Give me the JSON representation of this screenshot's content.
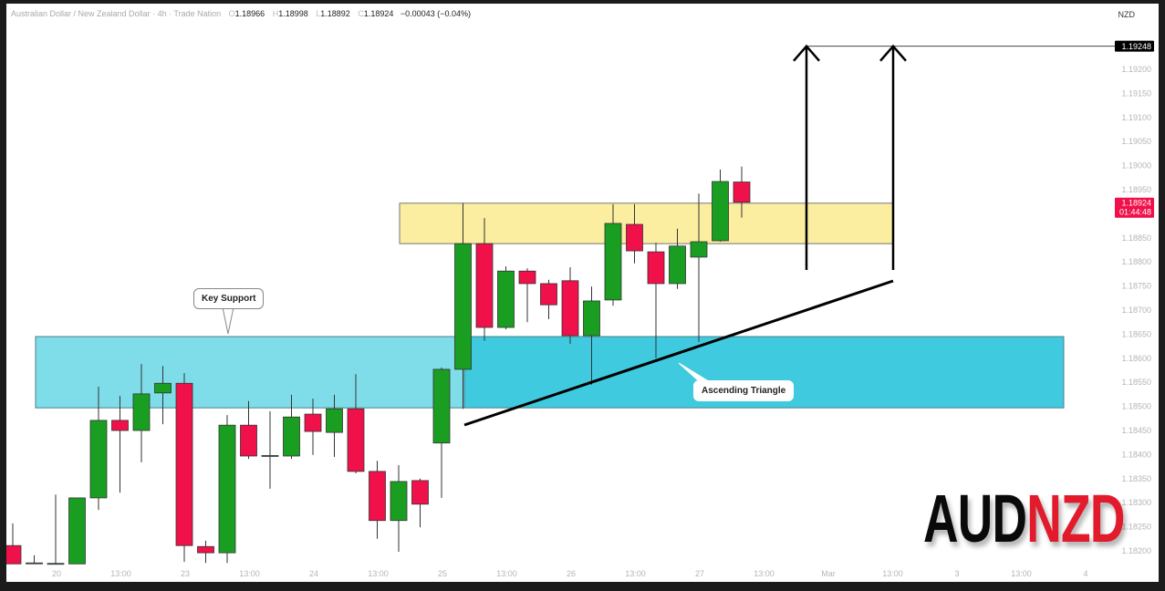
{
  "header": {
    "symbol_title": "Australian Dollar / New Zealand Dollar · 4h · Trade Nation",
    "ohlc": {
      "o_label": "O",
      "o": "1.18966",
      "h_label": "H",
      "h": "1.18998",
      "l_label": "L",
      "l": "1.18892",
      "c_label": "C",
      "c": "1.18924",
      "change": "−0.00043 (−0.04%)"
    },
    "currency": "NZD"
  },
  "price_axis": {
    "ticks": [
      "1.19200",
      "1.19150",
      "1.19100",
      "1.19050",
      "1.19000",
      "1.18950",
      "1.18850",
      "1.18800",
      "1.18750",
      "1.18700",
      "1.18650",
      "1.18600",
      "1.18550",
      "1.18500",
      "1.18450",
      "1.18400",
      "1.18350",
      "1.18300",
      "1.18250",
      "1.18200"
    ],
    "target_label": "1.19248",
    "current_price": "1.18924",
    "countdown": "01:44:48"
  },
  "time_axis": {
    "labels": [
      "20",
      "13:00",
      "23",
      "13:00",
      "24",
      "13:00",
      "25",
      "13:00",
      "26",
      "13:00",
      "27",
      "13:00",
      "Mar",
      "13:00",
      "3",
      "13:00",
      "4"
    ]
  },
  "annotations": {
    "key_support": "Key Support",
    "ascending_triangle": "Ascending Triangle",
    "support_zone": [
      1.18497,
      1.18645
    ],
    "resistance_zone": [
      1.18838,
      1.18922
    ],
    "target_price": 1.19248
  },
  "logo": {
    "part1": "AUD",
    "part2": "NZD"
  },
  "colors": {
    "up": "#1a9e22",
    "down": "#f0104a",
    "support": "#40cadf",
    "support_light": "#7fdde9",
    "resistance": "#fbeea0",
    "current": "#f0104a"
  },
  "chart_data": {
    "type": "candlestick",
    "ylim": [
      1.1817,
      1.193
    ],
    "candles": [
      {
        "o": 1.18211,
        "h": 1.18257,
        "l": 1.18173,
        "c": 1.18173
      },
      {
        "o": 1.18175,
        "h": 1.18191,
        "l": 1.18173,
        "c": 1.18175
      },
      {
        "o": 1.18173,
        "h": 1.18317,
        "l": 1.18173,
        "c": 1.18174
      },
      {
        "o": 1.18173,
        "h": 1.1831,
        "l": 1.18173,
        "c": 1.1831
      },
      {
        "o": 1.1831,
        "h": 1.18541,
        "l": 1.18285,
        "c": 1.18471
      },
      {
        "o": 1.18471,
        "h": 1.18522,
        "l": 1.18321,
        "c": 1.1845
      },
      {
        "o": 1.1845,
        "h": 1.18588,
        "l": 1.18384,
        "c": 1.18526
      },
      {
        "o": 1.18528,
        "h": 1.18584,
        "l": 1.18463,
        "c": 1.18548
      },
      {
        "o": 1.18548,
        "h": 1.18569,
        "l": 1.18177,
        "c": 1.18211
      },
      {
        "o": 1.18209,
        "h": 1.18221,
        "l": 1.18175,
        "c": 1.18196
      },
      {
        "o": 1.18196,
        "h": 1.18482,
        "l": 1.18175,
        "c": 1.18461
      },
      {
        "o": 1.18461,
        "h": 1.18511,
        "l": 1.18391,
        "c": 1.18397
      },
      {
        "o": 1.18397,
        "h": 1.1849,
        "l": 1.18329,
        "c": 1.18398
      },
      {
        "o": 1.18397,
        "h": 1.18524,
        "l": 1.18391,
        "c": 1.18478
      },
      {
        "o": 1.18484,
        "h": 1.18516,
        "l": 1.18399,
        "c": 1.18448
      },
      {
        "o": 1.18446,
        "h": 1.18524,
        "l": 1.18395,
        "c": 1.18495
      },
      {
        "o": 1.18495,
        "h": 1.18567,
        "l": 1.18361,
        "c": 1.18365
      },
      {
        "o": 1.18365,
        "h": 1.18387,
        "l": 1.18225,
        "c": 1.18263
      },
      {
        "o": 1.18263,
        "h": 1.18378,
        "l": 1.18198,
        "c": 1.18344
      },
      {
        "o": 1.18346,
        "h": 1.1835,
        "l": 1.18249,
        "c": 1.18297
      },
      {
        "o": 1.18424,
        "h": 1.18581,
        "l": 1.1831,
        "c": 1.18577
      },
      {
        "o": 1.18577,
        "h": 1.18922,
        "l": 1.18495,
        "c": 1.18838
      },
      {
        "o": 1.18838,
        "h": 1.18891,
        "l": 1.18636,
        "c": 1.18664
      },
      {
        "o": 1.18664,
        "h": 1.18791,
        "l": 1.1866,
        "c": 1.18781
      },
      {
        "o": 1.18781,
        "h": 1.18787,
        "l": 1.18675,
        "c": 1.18755
      },
      {
        "o": 1.18755,
        "h": 1.18763,
        "l": 1.18681,
        "c": 1.18711
      },
      {
        "o": 1.18761,
        "h": 1.18789,
        "l": 1.1863,
        "c": 1.18647
      },
      {
        "o": 1.18647,
        "h": 1.18749,
        "l": 1.18545,
        "c": 1.18719
      },
      {
        "o": 1.18721,
        "h": 1.1892,
        "l": 1.18709,
        "c": 1.1888
      },
      {
        "o": 1.18878,
        "h": 1.1892,
        "l": 1.18797,
        "c": 1.18823
      },
      {
        "o": 1.18821,
        "h": 1.1884,
        "l": 1.186,
        "c": 1.18755
      },
      {
        "o": 1.18755,
        "h": 1.18869,
        "l": 1.18744,
        "c": 1.18833
      },
      {
        "o": 1.1881,
        "h": 1.18942,
        "l": 1.18634,
        "c": 1.18842
      },
      {
        "o": 1.18844,
        "h": 1.18992,
        "l": 1.18842,
        "c": 1.18967
      },
      {
        "o": 1.18966,
        "h": 1.18998,
        "l": 1.18892,
        "c": 1.18924
      }
    ]
  }
}
